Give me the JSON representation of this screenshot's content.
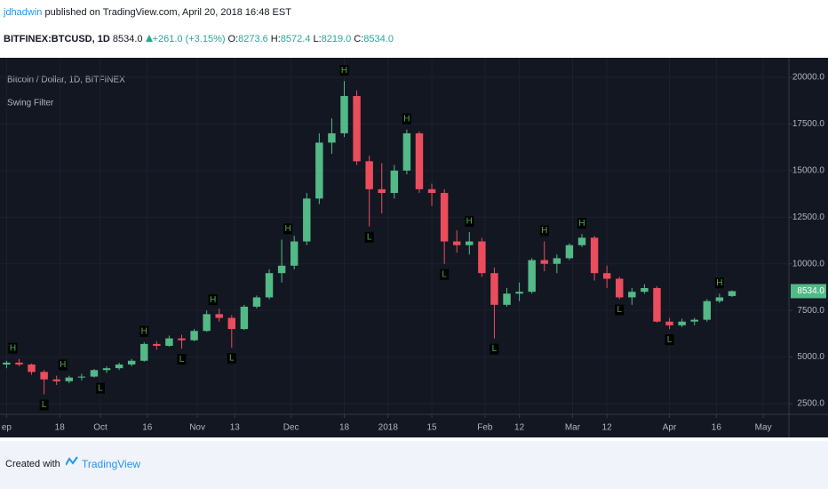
{
  "header": {
    "author": "jdhadwin",
    "published": "published on TradingView.com, April 20, 2018 16:48 EST",
    "symbol": "BITFINEX:BTCUSD, 1D",
    "price": "8534.0",
    "change": "+261.0 (+3.15%)",
    "ohlc": [
      {
        "key": "O:",
        "value": "8273.6"
      },
      {
        "key": "H:",
        "value": "8572.4"
      },
      {
        "key": "L:",
        "value": "8219.0"
      },
      {
        "key": "C:",
        "value": "8534.0"
      }
    ]
  },
  "chart_data": {
    "type": "candlestick",
    "title": "Bitcoin / Dollar, 1D, BITFINEX",
    "subtitle": "Swing Filter",
    "up_color": "#53b987",
    "down_color": "#eb4d5c",
    "grid": true,
    "marker_color": "#4caf50",
    "x": [
      0,
      4,
      8,
      12,
      16,
      20,
      24,
      28,
      32,
      36,
      40,
      44,
      48,
      52,
      56,
      60,
      64,
      68,
      72,
      76,
      80,
      84,
      88,
      92,
      96,
      100,
      104,
      108,
      112,
      116,
      120,
      124,
      128,
      132,
      136,
      140,
      144,
      148,
      152,
      156,
      160,
      164,
      168,
      172,
      176,
      180,
      184,
      188,
      192,
      196,
      200,
      204,
      208,
      212,
      216,
      220,
      224,
      228,
      232
    ],
    "open": [
      4600,
      4700,
      4600,
      4200,
      3800,
      3700,
      3900,
      3950,
      4300,
      4400,
      4600,
      4800,
      5700,
      5600,
      6000,
      5900,
      6400,
      7300,
      7100,
      6500,
      7700,
      8200,
      9500,
      9900,
      11200,
      13500,
      16500,
      17000,
      19000,
      15500,
      14000,
      13800,
      15000,
      17000,
      14000,
      13800,
      11200,
      11000,
      11200,
      9500,
      7800,
      8400,
      8500,
      10200,
      10000,
      10300,
      11000,
      11400,
      9500,
      9200,
      8200,
      8500,
      8700,
      6900,
      6700,
      6900,
      7000,
      8000,
      8273.6
    ],
    "high": [
      4800,
      4900,
      4650,
      4300,
      4000,
      4000,
      4100,
      4350,
      4500,
      4700,
      4900,
      5800,
      5850,
      6150,
      6200,
      6500,
      7500,
      7600,
      7250,
      7800,
      8300,
      9700,
      11300,
      11500,
      13800,
      17000,
      17800,
      19800,
      19300,
      15800,
      15400,
      15300,
      17200,
      17100,
      14300,
      14000,
      11800,
      11700,
      11400,
      9800,
      8700,
      9000,
      10300,
      11200,
      10500,
      11100,
      11600,
      11500,
      9900,
      9300,
      8700,
      8900,
      8800,
      7100,
      7050,
      7100,
      8100,
      8400,
      8572.4
    ],
    "low": [
      4400,
      4500,
      4050,
      3000,
      3500,
      3600,
      3750,
      3900,
      4150,
      4300,
      4500,
      4750,
      5400,
      5550,
      5450,
      5850,
      6350,
      6900,
      5500,
      6450,
      7600,
      8100,
      9000,
      9700,
      11000,
      13200,
      15900,
      16800,
      15300,
      12000,
      12700,
      13500,
      14800,
      13800,
      13100,
      10000,
      10600,
      10500,
      9300,
      6000,
      7700,
      8000,
      8400,
      9600,
      9500,
      10200,
      10900,
      9100,
      8700,
      8100,
      7800,
      8400,
      6850,
      6500,
      6600,
      6700,
      6900,
      7900,
      8219.0
    ],
    "close": [
      4700,
      4600,
      4200,
      3800,
      3700,
      3900,
      3950,
      4300,
      4400,
      4600,
      4800,
      5700,
      5600,
      6000,
      5900,
      6400,
      7300,
      7100,
      6500,
      7700,
      8200,
      9500,
      9900,
      11200,
      13500,
      16500,
      17000,
      19000,
      15500,
      14000,
      13800,
      15000,
      17000,
      14000,
      13800,
      11200,
      11000,
      11200,
      9500,
      7800,
      8400,
      8500,
      10200,
      10000,
      10300,
      11000,
      11400,
      9500,
      9200,
      8200,
      8500,
      8700,
      6900,
      6700,
      6900,
      7000,
      8000,
      8200,
      8534.0
    ],
    "markers": [
      {
        "x": 2,
        "price": 4900,
        "label": "H"
      },
      {
        "x": 12,
        "price": 3000,
        "label": "L"
      },
      {
        "x": 18,
        "price": 4000,
        "label": "H"
      },
      {
        "x": 30,
        "price": 3900,
        "label": "L"
      },
      {
        "x": 44,
        "price": 5800,
        "label": "H"
      },
      {
        "x": 56,
        "price": 5450,
        "label": "L"
      },
      {
        "x": 66,
        "price": 7500,
        "label": "H"
      },
      {
        "x": 72,
        "price": 5500,
        "label": "L"
      },
      {
        "x": 90,
        "price": 11300,
        "label": "H"
      },
      {
        "x": 108,
        "price": 19800,
        "label": "H"
      },
      {
        "x": 116,
        "price": 12000,
        "label": "L"
      },
      {
        "x": 128,
        "price": 17200,
        "label": "H"
      },
      {
        "x": 140,
        "price": 10000,
        "label": "L"
      },
      {
        "x": 148,
        "price": 11700,
        "label": "H"
      },
      {
        "x": 156,
        "price": 6000,
        "label": "L"
      },
      {
        "x": 172,
        "price": 11200,
        "label": "H"
      },
      {
        "x": 184,
        "price": 11600,
        "label": "H"
      },
      {
        "x": 196,
        "price": 8100,
        "label": "L"
      },
      {
        "x": 212,
        "price": 6500,
        "label": "L"
      },
      {
        "x": 228,
        "price": 8400,
        "label": "H"
      }
    ],
    "last_price": {
      "value": 8534.0,
      "label": "8534.0"
    },
    "xlim": [
      -2.1,
      250.2
    ],
    "ylim": [
      1975,
      21050
    ],
    "xticks": [
      {
        "value": 0,
        "label": "ep"
      },
      {
        "value": 17,
        "label": "18"
      },
      {
        "value": 30,
        "label": "Oct"
      },
      {
        "value": 45,
        "label": "16"
      },
      {
        "value": 61,
        "label": "Nov"
      },
      {
        "value": 73,
        "label": "13"
      },
      {
        "value": 91,
        "label": "Dec"
      },
      {
        "value": 108,
        "label": "18"
      },
      {
        "value": 122,
        "label": "2018"
      },
      {
        "value": 136,
        "label": "15"
      },
      {
        "value": 153,
        "label": "Feb"
      },
      {
        "value": 164,
        "label": "12"
      },
      {
        "value": 181,
        "label": "Mar"
      },
      {
        "value": 192,
        "label": "12"
      },
      {
        "value": 212,
        "label": "Apr"
      },
      {
        "value": 227,
        "label": "16"
      },
      {
        "value": 242,
        "label": "May"
      }
    ],
    "yticks": [
      {
        "value": 2500,
        "label": "2500.0"
      },
      {
        "value": 5000,
        "label": "5000.0"
      },
      {
        "value": 7500,
        "label": "7500.0"
      },
      {
        "value": 10000,
        "label": "10000.0"
      },
      {
        "value": 12500,
        "label": "12500.0"
      },
      {
        "value": 15000,
        "label": "15000.0"
      },
      {
        "value": 17500,
        "label": "17500.0"
      },
      {
        "value": 20000,
        "label": "20000.0"
      }
    ]
  },
  "footer": {
    "created": "Created with",
    "brand": "TradingView"
  }
}
